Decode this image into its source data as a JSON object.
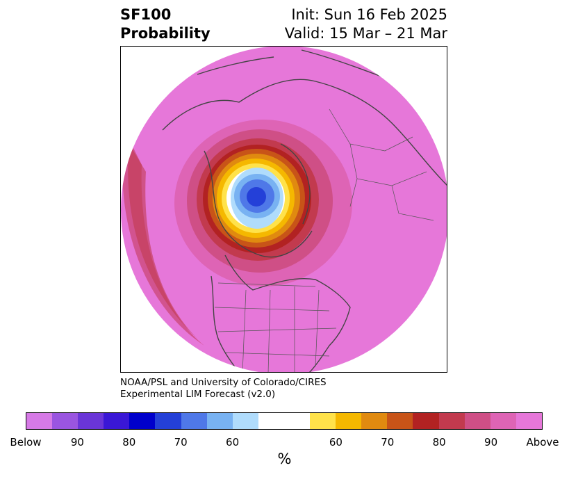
{
  "title": {
    "left_line1": "SF100",
    "left_line2": "Probability",
    "right_line1": "Init: Sun 16 Feb 2025",
    "right_line2": "Valid: 15 Mar – 21 Mar"
  },
  "credit": {
    "line1": "NOAA/PSL and University of Colorado/CIRES",
    "line2": "Experimental LIM Forecast (v2.0)"
  },
  "colorbar": {
    "colors": [
      "#d67ae6",
      "#9a55e0",
      "#6a35d8",
      "#3a17d6",
      "#0000cc",
      "#2440d8",
      "#4f78e8",
      "#78b2f2",
      "#b0dcfc",
      "#ffffff",
      "#ffffff",
      "#ffe24a",
      "#f5b800",
      "#e08a10",
      "#c85418",
      "#b22222",
      "#c23a4e",
      "#cf4f86",
      "#de64b5",
      "#e677d9"
    ],
    "ticks": [
      "Below",
      "90",
      "80",
      "70",
      "60",
      "60",
      "70",
      "80",
      "90",
      "Above"
    ],
    "label": "%"
  },
  "map": {
    "projection": "north-polar-stereographic",
    "background_color": "#e677d9",
    "anomaly_center_colors": [
      "#2440d8",
      "#4f78e8",
      "#78b2f2",
      "#b0dcfc"
    ],
    "ring_colors": [
      "#ffe24a",
      "#f5b800",
      "#e08a10",
      "#c85418",
      "#b22222",
      "#c23a4e",
      "#cf4f86"
    ]
  }
}
